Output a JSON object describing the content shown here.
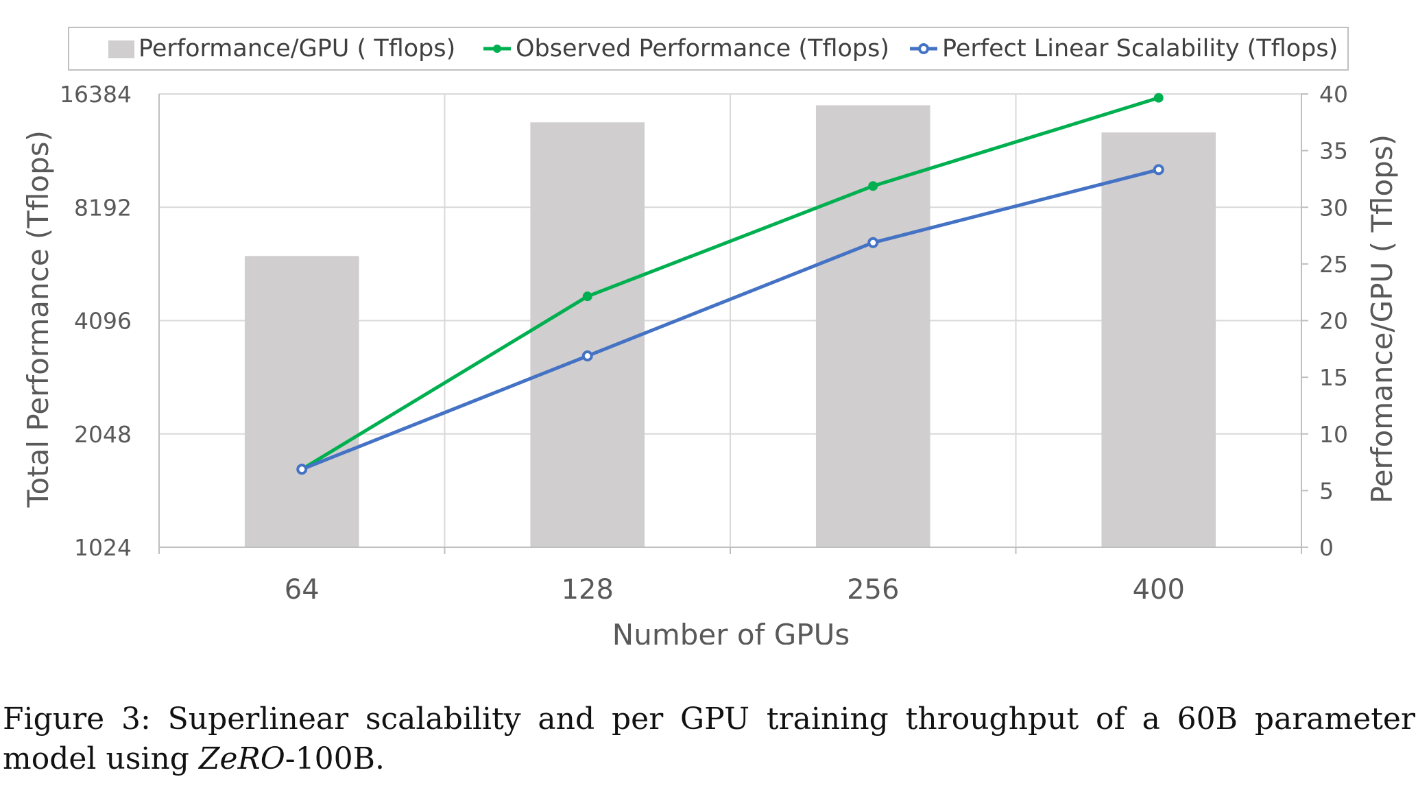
{
  "chart_data": {
    "type": "bar",
    "categories": [
      "64",
      "128",
      "256",
      "400"
    ],
    "x_label": "Number of GPUs",
    "y_label_left": "Total Performance (Tflops)",
    "y_label_right": "Perfomance/GPU ( Tflops)",
    "y_left_scale": "log2",
    "y_left_ticks": [
      "1024",
      "2048",
      "4096",
      "8192",
      "16384"
    ],
    "y_left_range": [
      1024,
      16384
    ],
    "y_right_ticks": [
      "0",
      "5",
      "10",
      "15",
      "20",
      "25",
      "30",
      "35",
      "40"
    ],
    "y_right_range": [
      0,
      40
    ],
    "grid": true,
    "legend_position": "top",
    "series": [
      {
        "name": "Performance/GPU ( Tflops)",
        "kind": "bar",
        "axis": "right",
        "color": "#d0cece",
        "values": [
          25.7,
          37.5,
          39.0,
          36.6
        ]
      },
      {
        "name": "Observed Performance (Tflops)",
        "kind": "line",
        "axis": "left",
        "color": "#00b050",
        "values": [
          1650,
          4750,
          9330,
          16000
        ]
      },
      {
        "name": "Perfect Linear Scalability (Tflops)",
        "kind": "line",
        "axis": "left",
        "color": "#4472c4",
        "values": [
          1650,
          3300,
          6600,
          10312
        ]
      }
    ]
  },
  "caption": {
    "prefix": "Figure 3: Superlinear scalability and per GPU training throughput of a 60B parameter model using ",
    "emphasis": "ZeRO",
    "suffix": "-100B."
  }
}
